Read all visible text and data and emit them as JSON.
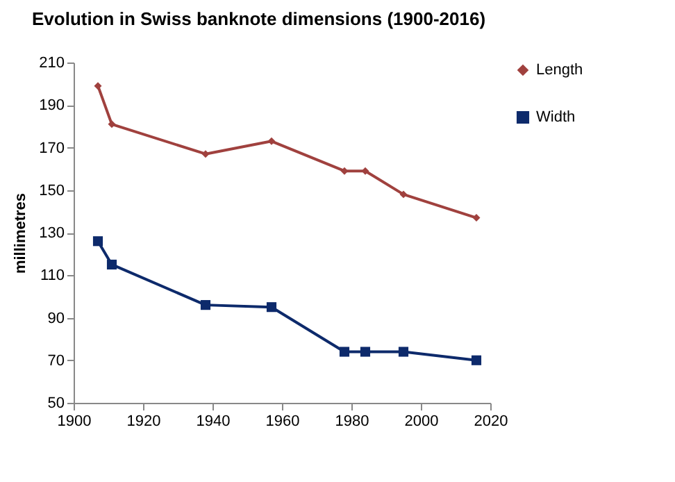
{
  "chart_data": {
    "type": "line",
    "title": "Evolution in Swiss banknote dimensions (1900-2016)",
    "ylabel": "millimetres",
    "x": [
      1907,
      1911,
      1938,
      1957,
      1978,
      1984,
      1995,
      2016
    ],
    "series": [
      {
        "name": "Length",
        "color": "#a0413e",
        "marker": "diamond",
        "values": [
          199,
          181,
          167,
          173,
          159,
          159,
          148,
          137
        ]
      },
      {
        "name": "Width",
        "color": "#0d2a6b",
        "marker": "square",
        "values": [
          126,
          115,
          96,
          95,
          74,
          74,
          74,
          70
        ]
      }
    ],
    "xlim": [
      1900,
      2020
    ],
    "xticks": [
      1900,
      1920,
      1940,
      1960,
      1980,
      2000,
      2020
    ],
    "ylim": [
      50,
      210
    ],
    "yticks": [
      50,
      70,
      90,
      110,
      130,
      150,
      170,
      190,
      210
    ],
    "legend": "right",
    "grid": false
  }
}
